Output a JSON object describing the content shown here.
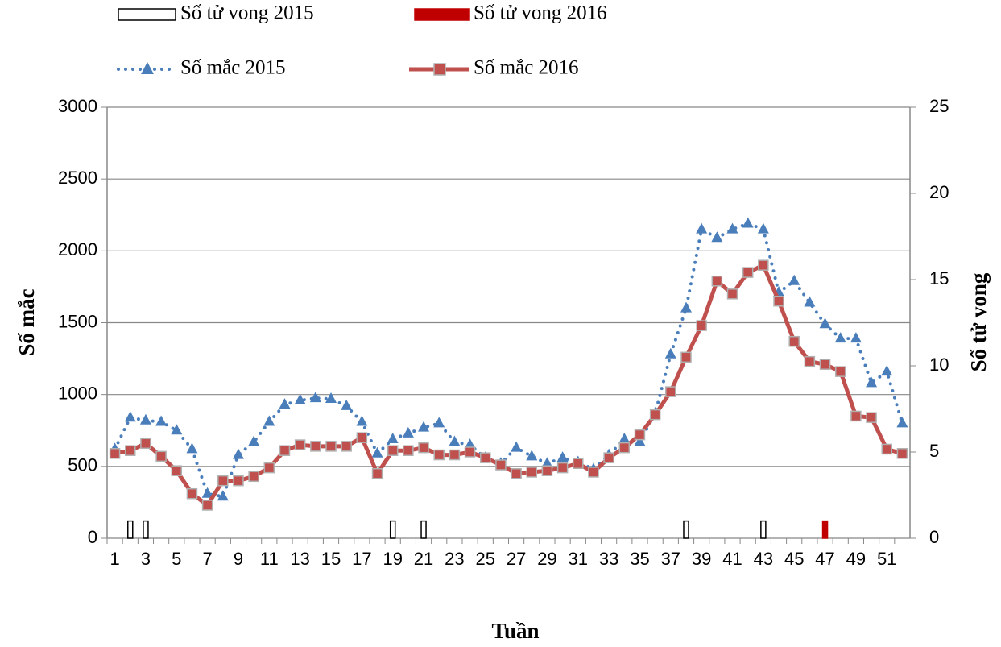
{
  "chart_data": {
    "type": "line",
    "x_label": "Tuần",
    "y_label": "Số mắc",
    "y2_label": "Số tử vong",
    "categories": [
      1,
      null,
      3,
      null,
      5,
      null,
      7,
      null,
      9,
      null,
      11,
      null,
      13,
      null,
      15,
      null,
      17,
      null,
      19,
      null,
      21,
      null,
      23,
      null,
      25,
      null,
      27,
      null,
      29,
      null,
      31,
      null,
      33,
      null,
      35,
      null,
      37,
      null,
      39,
      null,
      41,
      null,
      43,
      null,
      45,
      null,
      47,
      null,
      49,
      null,
      51,
      null
    ],
    "ylim": [
      0,
      3000
    ],
    "yticks": [
      0,
      500,
      1000,
      1500,
      2000,
      2500,
      3000
    ],
    "y2lim": [
      0,
      25
    ],
    "y2ticks": [
      0,
      5,
      10,
      15,
      20,
      25
    ],
    "series": [
      {
        "name": "Số tử vong 2015",
        "type": "bar",
        "axis": "y2",
        "color": "#ffffff",
        "values": [
          0,
          1,
          1,
          0,
          0,
          0,
          0,
          0,
          0,
          0,
          0,
          0,
          0,
          0,
          0,
          0,
          0,
          0,
          1,
          0,
          1,
          0,
          0,
          0,
          0,
          0,
          0,
          0,
          0,
          0,
          0,
          0,
          0,
          0,
          0,
          0,
          0,
          1,
          0,
          0,
          0,
          0,
          1,
          0,
          0,
          0,
          0,
          0,
          0,
          0,
          0,
          0
        ]
      },
      {
        "name": "Số tử vong 2016",
        "type": "bar",
        "axis": "y2",
        "color": "#c00000",
        "values": [
          0,
          0,
          0,
          0,
          0,
          0,
          0,
          0,
          0,
          0,
          0,
          0,
          0,
          0,
          0,
          0,
          0,
          0,
          0,
          0,
          0,
          0,
          0,
          0,
          0,
          0,
          0,
          0,
          0,
          0,
          0,
          0,
          0,
          0,
          0,
          0,
          0,
          0,
          0,
          0,
          0,
          0,
          0,
          0,
          0,
          0,
          1,
          0,
          0,
          0,
          0,
          0
        ]
      },
      {
        "name": "Số mắc 2015",
        "type": "line",
        "color": "#4a7ebb",
        "values": [
          620,
          840,
          820,
          810,
          750,
          620,
          310,
          290,
          580,
          670,
          810,
          930,
          960,
          975,
          970,
          920,
          810,
          590,
          690,
          730,
          770,
          800,
          670,
          650,
          560,
          520,
          630,
          570,
          520,
          560,
          530,
          480,
          580,
          690,
          670,
          870,
          1280,
          1600,
          2150,
          2090,
          2150,
          2190,
          2150,
          1710,
          1790,
          1640,
          1490,
          1390,
          1390,
          1080,
          1160,
          800
        ]
      },
      {
        "name": "Số mắc 2016",
        "type": "line",
        "color": "#c0504d",
        "values": [
          590,
          610,
          660,
          570,
          470,
          310,
          230,
          400,
          400,
          430,
          490,
          610,
          650,
          640,
          640,
          640,
          700,
          450,
          610,
          610,
          630,
          580,
          580,
          600,
          560,
          510,
          450,
          460,
          470,
          490,
          520,
          460,
          560,
          630,
          720,
          860,
          1020,
          1260,
          1480,
          1790,
          1700,
          1850,
          1900,
          1650,
          1370,
          1230,
          1210,
          1160,
          850,
          840,
          620,
          590
        ]
      }
    ]
  }
}
